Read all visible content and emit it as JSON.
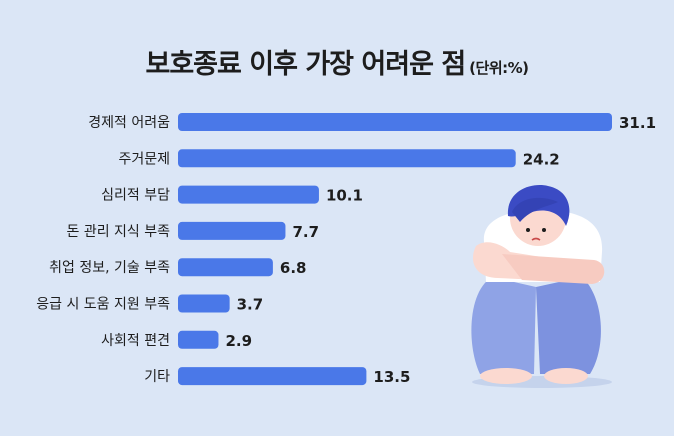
{
  "chart_data": {
    "type": "bar",
    "orientation": "horizontal",
    "title": "보호종료 이후 가장 어려운 점",
    "unit": "(단위:%)",
    "categories": [
      "경제적 어려움",
      "주거문제",
      "심리적 부담",
      "돈 관리 지식 부족",
      "취업 정보, 기술 부족",
      "응급 시 도움 지원 부족",
      "사회적 편견",
      "기타"
    ],
    "values": [
      31.1,
      24.2,
      10.1,
      7.7,
      6.8,
      3.7,
      2.9,
      13.5
    ],
    "value_labels": [
      "31.1",
      "24.2",
      "10.1",
      "7.7",
      "6.8",
      "3.7",
      "2.9",
      "13.5"
    ],
    "xlim": [
      0,
      31.1
    ],
    "grid": false,
    "legend": "none"
  },
  "colors": {
    "background": "#dbe6f6",
    "bar": "#4a78e8",
    "text": "#1d1d1d"
  },
  "illustration": "sad-person-hugging-knees"
}
